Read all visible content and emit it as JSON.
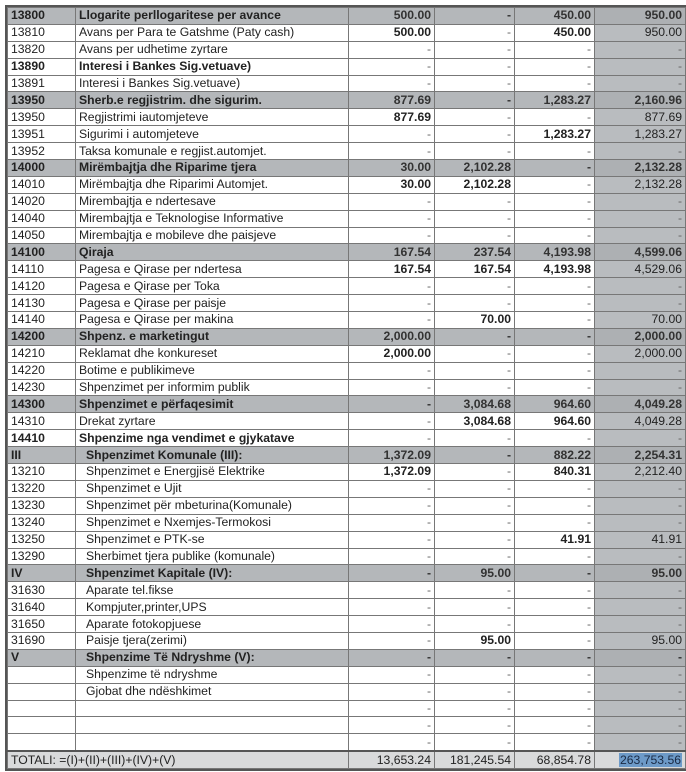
{
  "rows": [
    {
      "code": "13800",
      "desc": "Llogarite perllogaritese per avance",
      "values": [
        "500.00",
        "-",
        "450.00",
        "950.00"
      ],
      "type": "group"
    },
    {
      "code": "13810",
      "desc": "Avans per Para te Gatshme (Paty cash)",
      "values": [
        "500.00",
        "-",
        "450.00",
        "950.00"
      ],
      "type": "detail"
    },
    {
      "code": "13820",
      "desc": "Avans per udhetime zyrtare",
      "values": [
        "-",
        "-",
        "-",
        "-"
      ],
      "type": "detail"
    },
    {
      "code": "13890",
      "desc": "Interesi i Bankes Sig.vetuave)",
      "values": [
        "-",
        "-",
        "-",
        "-"
      ],
      "type": "bold"
    },
    {
      "code": "13891",
      "desc": "Interesi i Bankes Sig.vetuave)",
      "values": [
        "-",
        "-",
        "-",
        "-"
      ],
      "type": "detail"
    },
    {
      "code": "13950",
      "desc": "Sherb.e regjistrim. dhe sigurim.",
      "values": [
        "877.69",
        "-",
        "1,283.27",
        "2,160.96"
      ],
      "type": "group"
    },
    {
      "code": "13950",
      "desc": "Regjistrimi iautomjeteve",
      "values": [
        "877.69",
        "-",
        "-",
        "877.69"
      ],
      "type": "detail"
    },
    {
      "code": "13951",
      "desc": "Sigurimi i automjeteve",
      "values": [
        "-",
        "-",
        "1,283.27",
        "1,283.27"
      ],
      "type": "detail"
    },
    {
      "code": "13952",
      "desc": "Taksa komunale e regjist.automjet.",
      "values": [
        "-",
        "-",
        "-",
        "-"
      ],
      "type": "detail"
    },
    {
      "code": "14000",
      "desc": "Mirëmbajtja dhe Riparime tjera",
      "values": [
        "30.00",
        "2,102.28",
        "-",
        "2,132.28"
      ],
      "type": "group"
    },
    {
      "code": "14010",
      "desc": "Mirëmbajtja  dhe Riparimi  Automjet.",
      "values": [
        "30.00",
        "2,102.28",
        "-",
        "2,132.28"
      ],
      "type": "detail"
    },
    {
      "code": "14020",
      "desc": "Mirembajtja e ndertesave",
      "values": [
        "-",
        "-",
        "-",
        "-"
      ],
      "type": "detail"
    },
    {
      "code": "14040",
      "desc": "Mirembajtja e Teknologise Informative",
      "values": [
        "-",
        "-",
        "-",
        "-"
      ],
      "type": "detail"
    },
    {
      "code": "14050",
      "desc": "Mirembajtja e mobileve dhe paisjeve",
      "values": [
        "-",
        "-",
        "-",
        "-"
      ],
      "type": "detail"
    },
    {
      "code": "14100",
      "desc": "Qiraja",
      "values": [
        "167.54",
        "237.54",
        "4,193.98",
        "4,599.06"
      ],
      "type": "group"
    },
    {
      "code": "14110",
      "desc": "Pagesa e Qirase per ndertesa",
      "values": [
        "167.54",
        "167.54",
        "4,193.98",
        "4,529.06"
      ],
      "type": "detail"
    },
    {
      "code": "14120",
      "desc": "Pagesa e Qirase per Toka",
      "values": [
        "-",
        "-",
        "-",
        "-"
      ],
      "type": "detail"
    },
    {
      "code": "14130",
      "desc": "Pagesa e Qirase per paisje",
      "values": [
        "-",
        "-",
        "-",
        "-"
      ],
      "type": "detail"
    },
    {
      "code": "14140",
      "desc": "Pagesa e Qirase per makina",
      "values": [
        "-",
        "70.00",
        "-",
        "70.00"
      ],
      "type": "detail"
    },
    {
      "code": "14200",
      "desc": "Shpenz. e marketingut",
      "values": [
        "2,000.00",
        "-",
        "-",
        "2,000.00"
      ],
      "type": "group"
    },
    {
      "code": "14210",
      "desc": "Reklamat dhe konkureset",
      "values": [
        "2,000.00",
        "-",
        "-",
        "2,000.00"
      ],
      "type": "detail"
    },
    {
      "code": "14220",
      "desc": "Botime e publikimeve",
      "values": [
        "-",
        "-",
        "-",
        "-"
      ],
      "type": "detail"
    },
    {
      "code": "14230",
      "desc": "Shpenzimet per informim publik",
      "values": [
        "-",
        "-",
        "-",
        "-"
      ],
      "type": "detail"
    },
    {
      "code": "14300",
      "desc": "Shpenzimet e përfaqesimit",
      "values": [
        "-",
        "3,084.68",
        "964.60",
        "4,049.28"
      ],
      "type": "group"
    },
    {
      "code": "14310",
      "desc": "Drekat zyrtare",
      "values": [
        "-",
        "3,084.68",
        "964.60",
        "4,049.28"
      ],
      "type": "detail"
    },
    {
      "code": "14410",
      "desc": "Shpenzime nga vendimet e gjykatave",
      "values": [
        "-",
        "-",
        "-",
        "-"
      ],
      "type": "bold"
    },
    {
      "code": "III",
      "desc": "Shpenzimet  Komunale (III):",
      "values": [
        "1,372.09",
        "-",
        "882.22",
        "2,254.31"
      ],
      "type": "group",
      "indent": true
    },
    {
      "code": "13210",
      "desc": "Shpenzimet e Energjisë Elektrike",
      "values": [
        "1,372.09",
        "-",
        "840.31",
        "2,212.40"
      ],
      "type": "detail",
      "indent": true
    },
    {
      "code": "13220",
      "desc": "Shpenzimet e Ujit",
      "values": [
        "-",
        "-",
        "-",
        "-"
      ],
      "type": "detail",
      "indent": true
    },
    {
      "code": "13230",
      "desc": "Shpenzimet për mbeturina(Komunale)",
      "values": [
        "-",
        "-",
        "-",
        "-"
      ],
      "type": "detail",
      "indent": true
    },
    {
      "code": "13240",
      "desc": "Shpenzimet e Nxemjes-Termokosi",
      "values": [
        "-",
        "-",
        "-",
        "-"
      ],
      "type": "detail",
      "indent": true
    },
    {
      "code": "13250",
      "desc": "Shpenzimet e PTK-se",
      "values": [
        "-",
        "-",
        "41.91",
        "41.91"
      ],
      "type": "detail",
      "indent": true
    },
    {
      "code": "13290",
      "desc": "Sherbimet tjera publike (komunale)",
      "values": [
        "-",
        "-",
        "-",
        "-"
      ],
      "type": "detail",
      "indent": true
    },
    {
      "code": "IV",
      "desc": "Shpenzimet Kapitale (IV):",
      "values": [
        "-",
        "95.00",
        "-",
        "95.00"
      ],
      "type": "group",
      "indent": true
    },
    {
      "code": "31630",
      "desc": "Aparate tel.fikse",
      "values": [
        "-",
        "-",
        "-",
        "-"
      ],
      "type": "detail",
      "indent": true
    },
    {
      "code": "31640",
      "desc": "Kompjuter,printer,UPS",
      "values": [
        "-",
        "-",
        "-",
        "-"
      ],
      "type": "detail",
      "indent": true
    },
    {
      "code": "31650",
      "desc": "Aparate fotokopjuese",
      "values": [
        "-",
        "-",
        "-",
        "-"
      ],
      "type": "detail",
      "indent": true
    },
    {
      "code": "31690",
      "desc": "Paisje tjera(zerimi)",
      "values": [
        "-",
        "95.00",
        "-",
        "95.00"
      ],
      "type": "detail",
      "indent": true
    },
    {
      "code": "V",
      "desc": "Shpenzime Të Ndryshme (V):",
      "values": [
        "-",
        "-",
        "-",
        "-"
      ],
      "type": "group",
      "indent": true
    },
    {
      "code": "",
      "desc": "Shpenzime të ndryshme",
      "values": [
        "-",
        "-",
        "-",
        "-"
      ],
      "type": "detail",
      "indent": true
    },
    {
      "code": "",
      "desc": "Gjobat dhe ndëshkimet",
      "values": [
        "-",
        "-",
        "-",
        "-"
      ],
      "type": "detail",
      "indent": true
    },
    {
      "code": "",
      "desc": "",
      "values": [
        "-",
        "-",
        "-",
        "-"
      ],
      "type": "detail"
    },
    {
      "code": "",
      "desc": "",
      "values": [
        "-",
        "-",
        "-",
        "-"
      ],
      "type": "detail"
    },
    {
      "code": "",
      "desc": "",
      "values": [
        "-",
        "-",
        "-",
        "-"
      ],
      "type": "detail"
    }
  ],
  "total": {
    "label": "TOTALI: =(I)+(II)+(III)+(IV)+(V)",
    "values": [
      "13,653.24",
      "181,245.54",
      "68,854.78",
      "263,753.56"
    ]
  },
  "colors": {
    "group_row": "#b4b7ba",
    "total_column": "#b9bcbf",
    "selection_highlight": "#6d9ac8"
  }
}
